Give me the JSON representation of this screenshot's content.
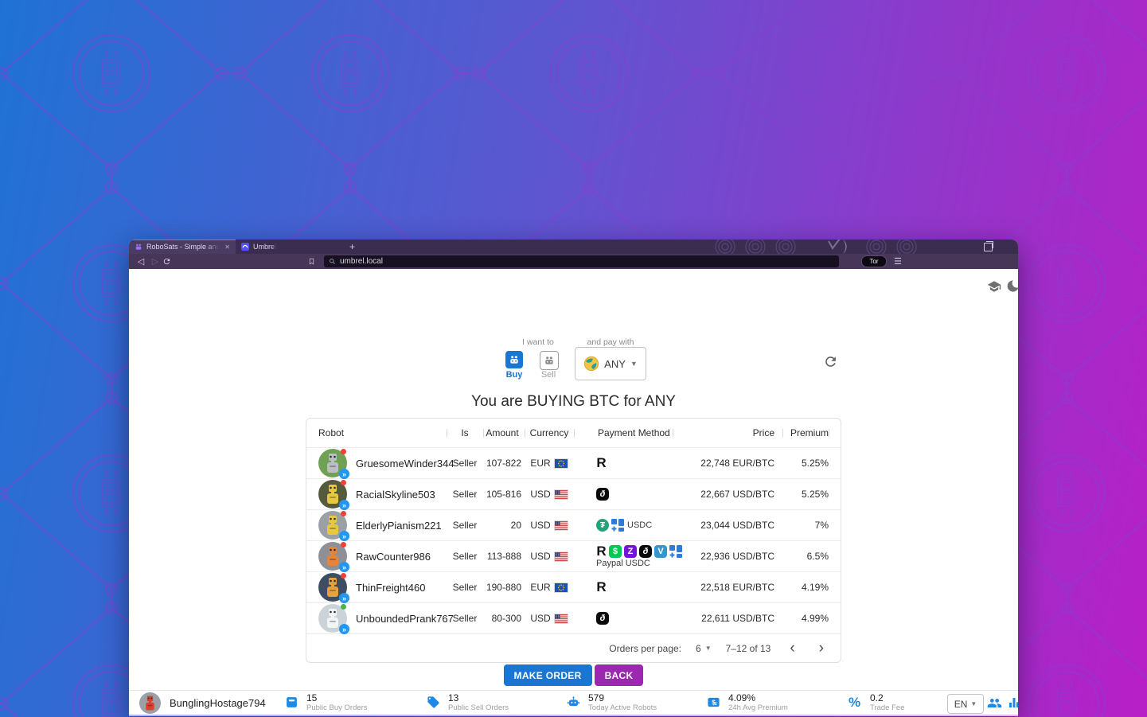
{
  "browser": {
    "tab_robosats": "RoboSats - Simple and Private Bit",
    "tab_umbrel": "Umbrel",
    "close_glyph": "✕",
    "new_tab_glyph": "+",
    "url": "umbrel.local",
    "tor_label": "Tor",
    "menu_glyph": "☰",
    "back_glyph": "◁",
    "forward_glyph": "▷"
  },
  "page": {
    "want_label": "I want to",
    "buy_label": "Buy",
    "sell_label": "Sell",
    "pay_label": "and pay with",
    "pay_value": "ANY",
    "heading": "You are BUYING BTC for ANY",
    "table": {
      "headers": {
        "robot": "Robot",
        "is": "Is",
        "amount": "Amount",
        "currency": "Currency",
        "payment": "Payment Method",
        "price": "Price",
        "premium": "Premium"
      },
      "rows": [
        {
          "name": "GruesomeWinder344",
          "is": "Seller",
          "amount": "107-822",
          "currency": "EUR",
          "flag": "eu",
          "payment": {
            "icons": [
              "revolut"
            ],
            "inline_text": "",
            "below_text": ""
          },
          "price": "22,748 EUR/BTC",
          "premium": "5.25%",
          "status": "#ef4136",
          "avatar": {
            "bg": "#6fa053",
            "body": "#b9bfc4"
          }
        },
        {
          "name": "RacialSkyline503",
          "is": "Seller",
          "amount": "105-816",
          "currency": "USD",
          "flag": "us",
          "payment": {
            "icons": [
              "swirl"
            ],
            "inline_text": "",
            "below_text": ""
          },
          "price": "22,667 USD/BTC",
          "premium": "5.25%",
          "status": "#ef4136",
          "avatar": {
            "bg": "#565a3c",
            "body": "#e8c93e"
          }
        },
        {
          "name": "ElderlyPianism221",
          "is": "Seller",
          "amount": "20",
          "currency": "USD",
          "flag": "us",
          "payment": {
            "icons": [
              "tether",
              "squares"
            ],
            "inline_text": "USDC",
            "below_text": ""
          },
          "price": "23,044 USD/BTC",
          "premium": "7%",
          "status": "#ef4136",
          "avatar": {
            "bg": "#9aa0a6",
            "body": "#e8c93e"
          }
        },
        {
          "name": "RawCounter986",
          "is": "Seller",
          "amount": "113-888",
          "currency": "USD",
          "flag": "us",
          "payment": {
            "icons": [
              "revolut",
              "cashapp",
              "zelle",
              "swirl",
              "venmo",
              "squares"
            ],
            "inline_text": "",
            "below_text": "Paypal USDC"
          },
          "price": "22,936 USD/BTC",
          "premium": "6.5%",
          "status": "#ef4136",
          "avatar": {
            "bg": "#8d9096",
            "body": "#e8833a"
          }
        },
        {
          "name": "ThinFreight460",
          "is": "Seller",
          "amount": "190-880",
          "currency": "EUR",
          "flag": "eu",
          "payment": {
            "icons": [
              "revolut"
            ],
            "inline_text": "",
            "below_text": ""
          },
          "price": "22,518 EUR/BTC",
          "premium": "4.19%",
          "status": "#ef4136",
          "avatar": {
            "bg": "#3f4d63",
            "body": "#e8a13a"
          }
        },
        {
          "name": "UnboundedPrank767",
          "is": "Seller",
          "amount": "80-300",
          "currency": "USD",
          "flag": "us",
          "payment": {
            "icons": [
              "swirl"
            ],
            "inline_text": "",
            "below_text": ""
          },
          "price": "22,611 USD/BTC",
          "premium": "4.99%",
          "status": "#4caf50",
          "avatar": {
            "bg": "#ccd3d8",
            "body": "#f2f5f6"
          }
        }
      ],
      "pagination": {
        "label": "Orders per page:",
        "per_page": "6",
        "range": "7–12 of 13",
        "prev": "‹",
        "next": "›",
        "caret": "▼"
      }
    },
    "make_order_label": "MAKE ORDER",
    "back_label": "BACK"
  },
  "bottom": {
    "nickname": "BunglingHostage794",
    "me_avatar": {
      "bg": "#9aa0a6",
      "body": "#d9412f"
    },
    "stats": [
      {
        "icon": "inbox",
        "value": "15",
        "label": "Public Buy Orders"
      },
      {
        "icon": "tag",
        "value": "13",
        "label": "Public Sell Orders"
      },
      {
        "icon": "robot",
        "value": "579",
        "label": "Today Active Robots"
      },
      {
        "icon": "pricetag",
        "value": "4.09%",
        "label": "24h Avg Premium"
      },
      {
        "icon": "percent",
        "value": "0.2",
        "label": "Trade Fee"
      }
    ],
    "language": "EN",
    "language_caret": "▼"
  },
  "icons": {
    "buy_tile": "robot-icon",
    "sell_tile": "robot-icon",
    "pay_globe": "globe-icon",
    "refresh": "refresh-icon",
    "learn": "graduation-cap-icon",
    "dark_mode": "moon-icon",
    "community": "people-icon",
    "stats": "bar-chart-icon",
    "pagination_prev": "chevron-left-icon",
    "pagination_next": "chevron-right-icon",
    "payment_set": [
      "revolut",
      "cashapp",
      "zelle",
      "swirl",
      "venmo",
      "tether",
      "squares"
    ]
  },
  "colors": {
    "accent_blue": "#1976d2",
    "accent_purple": "#9c27b0",
    "icon_blue": "#1e88e5",
    "desktop_left": "#1f72d4",
    "desktop_right": "#b81fc6",
    "status_red": "#ef4136",
    "status_green": "#4caf50",
    "badge_blue": "#2196f3"
  }
}
